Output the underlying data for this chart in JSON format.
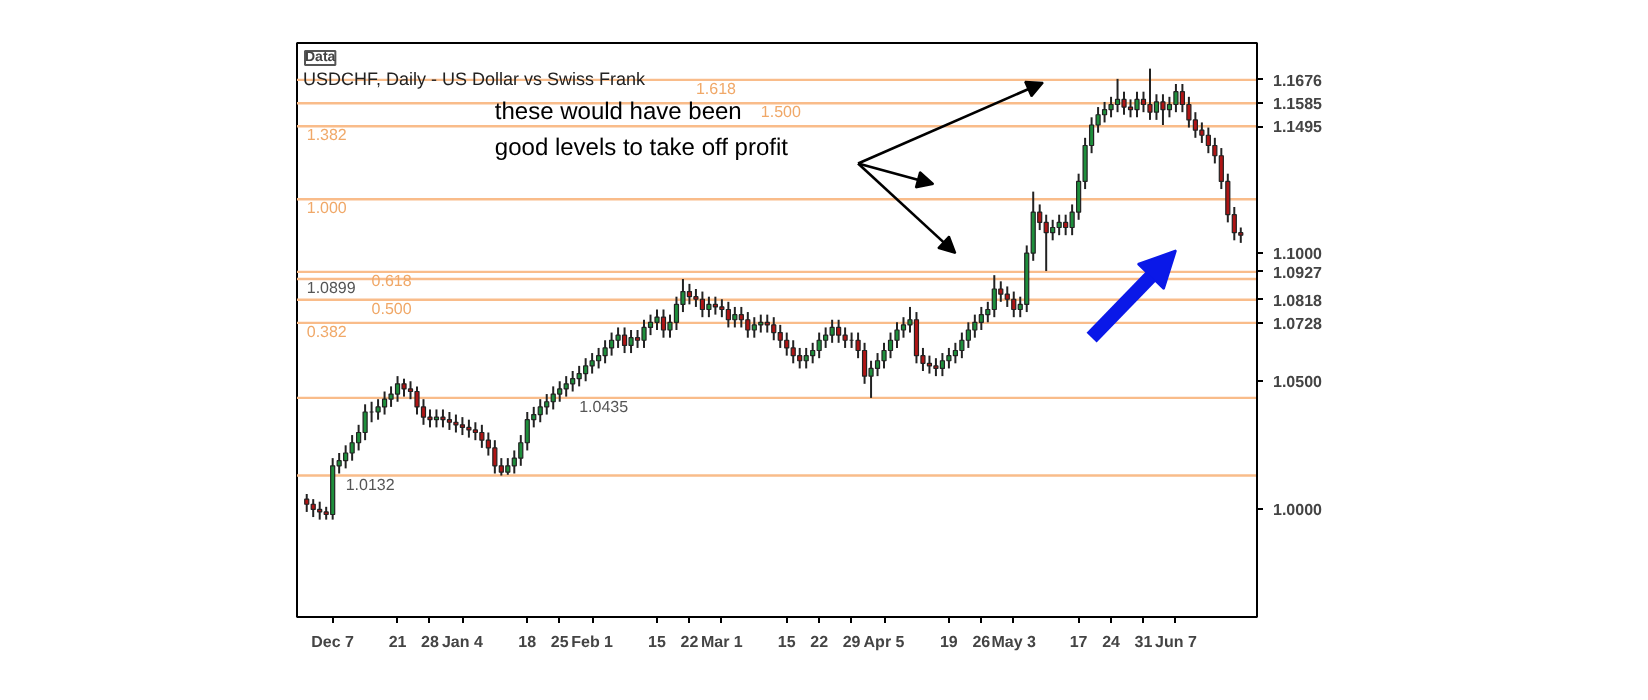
{
  "chart_data": {
    "type": "candlestick",
    "title": "USDCHF, Daily - US Dollar vs Swiss Frank",
    "annotations": [
      "Data",
      "these would have been\ngood levels to take off profit",
      {
        "text": "1.618",
        "y": 1.1676
      },
      {
        "text": "1.500",
        "y": 1.1585
      },
      {
        "text": "1.382",
        "y": 1.1495
      },
      {
        "text": "1.000",
        "y": 1.121
      },
      {
        "text": "0.618",
        "y": 1.0927
      },
      {
        "text": "0.500",
        "y": 1.0818
      },
      {
        "text": "0.382",
        "y": 1.0728
      }
    ],
    "categories": [
      null,
      null,
      null,
      null,
      "Dec 7",
      null,
      null,
      null,
      null,
      null,
      null,
      null,
      null,
      null,
      "21",
      null,
      null,
      null,
      null,
      "28",
      null,
      null,
      null,
      null,
      "Jan 4",
      null,
      null,
      null,
      null,
      null,
      null,
      null,
      null,
      null,
      "18",
      null,
      null,
      null,
      null,
      "25",
      null,
      null,
      null,
      null,
      "Feb 1",
      null,
      null,
      null,
      null,
      null,
      null,
      null,
      null,
      null,
      "15",
      null,
      null,
      null,
      null,
      "22",
      null,
      null,
      null,
      null,
      "Mar 1",
      null,
      null,
      null,
      null,
      null,
      null,
      null,
      null,
      null,
      "15",
      null,
      null,
      null,
      null,
      "22",
      null,
      null,
      null,
      null,
      "29",
      null,
      null,
      null,
      null,
      "Apr 5",
      null,
      null,
      null,
      null,
      null,
      null,
      null,
      null,
      null,
      "19",
      null,
      null,
      null,
      null,
      "26",
      null,
      null,
      null,
      null,
      "May 3",
      null,
      null,
      null,
      null,
      null,
      null,
      null,
      null,
      null,
      "17",
      null,
      null,
      null,
      null,
      "24",
      null,
      null,
      null,
      null,
      "31",
      null,
      null,
      null,
      null,
      "Jun 7",
      null,
      null,
      null,
      null,
      null,
      null,
      null,
      null,
      null,
      null
    ],
    "ohlc": [
      [
        1.004,
        1.006,
        0.999,
        1.002
      ],
      [
        1.002,
        1.004,
        0.997,
        1.0
      ],
      [
        1.0,
        1.003,
        0.996,
        0.999
      ],
      [
        0.999,
        1.001,
        0.996,
        0.998
      ],
      [
        0.998,
        1.02,
        0.996,
        1.017
      ],
      [
        1.017,
        1.022,
        1.014,
        1.019
      ],
      [
        1.019,
        1.025,
        1.016,
        1.022
      ],
      [
        1.022,
        1.029,
        1.019,
        1.026
      ],
      [
        1.026,
        1.033,
        1.023,
        1.03
      ],
      [
        1.03,
        1.041,
        1.027,
        1.038
      ],
      [
        1.038,
        1.042,
        1.034,
        1.038
      ],
      [
        1.038,
        1.043,
        1.035,
        1.04
      ],
      [
        1.04,
        1.046,
        1.037,
        1.043
      ],
      [
        1.043,
        1.048,
        1.04,
        1.045
      ],
      [
        1.045,
        1.052,
        1.042,
        1.049
      ],
      [
        1.049,
        1.051,
        1.044,
        1.047
      ],
      [
        1.047,
        1.05,
        1.043,
        1.046
      ],
      [
        1.046,
        1.048,
        1.037,
        1.04
      ],
      [
        1.04,
        1.043,
        1.033,
        1.036
      ],
      [
        1.036,
        1.039,
        1.032,
        1.035
      ],
      [
        1.035,
        1.039,
        1.032,
        1.036
      ],
      [
        1.036,
        1.039,
        1.032,
        1.035
      ],
      [
        1.035,
        1.038,
        1.031,
        1.034
      ],
      [
        1.034,
        1.037,
        1.03,
        1.033
      ],
      [
        1.033,
        1.036,
        1.029,
        1.032
      ],
      [
        1.032,
        1.035,
        1.028,
        1.031
      ],
      [
        1.031,
        1.034,
        1.027,
        1.03
      ],
      [
        1.03,
        1.033,
        1.024,
        1.027
      ],
      [
        1.027,
        1.03,
        1.021,
        1.024
      ],
      [
        1.024,
        1.027,
        1.014,
        1.017
      ],
      [
        1.017,
        1.02,
        1.0132,
        1.0145
      ],
      [
        1.0145,
        1.02,
        1.0135,
        1.017
      ],
      [
        1.017,
        1.023,
        1.014,
        1.02
      ],
      [
        1.02,
        1.029,
        1.017,
        1.026
      ],
      [
        1.026,
        1.038,
        1.023,
        1.035
      ],
      [
        1.035,
        1.04,
        1.032,
        1.037
      ],
      [
        1.037,
        1.043,
        1.034,
        1.04
      ],
      [
        1.04,
        1.045,
        1.037,
        1.042
      ],
      [
        1.042,
        1.048,
        1.039,
        1.045
      ],
      [
        1.045,
        1.05,
        1.042,
        1.047
      ],
      [
        1.047,
        1.052,
        1.044,
        1.049
      ],
      [
        1.049,
        1.054,
        1.046,
        1.051
      ],
      [
        1.051,
        1.056,
        1.048,
        1.053
      ],
      [
        1.053,
        1.059,
        1.05,
        1.056
      ],
      [
        1.056,
        1.061,
        1.053,
        1.058
      ],
      [
        1.058,
        1.063,
        1.055,
        1.06
      ],
      [
        1.06,
        1.066,
        1.057,
        1.063
      ],
      [
        1.063,
        1.069,
        1.06,
        1.066
      ],
      [
        1.066,
        1.071,
        1.063,
        1.068
      ],
      [
        1.068,
        1.071,
        1.061,
        1.064
      ],
      [
        1.064,
        1.07,
        1.061,
        1.067
      ],
      [
        1.067,
        1.07,
        1.063,
        1.066
      ],
      [
        1.066,
        1.074,
        1.063,
        1.071
      ],
      [
        1.071,
        1.076,
        1.068,
        1.073
      ],
      [
        1.073,
        1.078,
        1.07,
        1.075
      ],
      [
        1.075,
        1.078,
        1.067,
        1.07
      ],
      [
        1.07,
        1.076,
        1.067,
        1.073
      ],
      [
        1.073,
        1.083,
        1.07,
        1.08
      ],
      [
        1.08,
        1.0899,
        1.077,
        1.085
      ],
      [
        1.085,
        1.088,
        1.08,
        1.083
      ],
      [
        1.083,
        1.086,
        1.079,
        1.082
      ],
      [
        1.082,
        1.085,
        1.075,
        1.078
      ],
      [
        1.078,
        1.083,
        1.075,
        1.08
      ],
      [
        1.08,
        1.083,
        1.076,
        1.079
      ],
      [
        1.079,
        1.082,
        1.075,
        1.078
      ],
      [
        1.078,
        1.081,
        1.071,
        1.074
      ],
      [
        1.074,
        1.079,
        1.071,
        1.076
      ],
      [
        1.076,
        1.079,
        1.071,
        1.074
      ],
      [
        1.074,
        1.077,
        1.067,
        1.07
      ],
      [
        1.07,
        1.075,
        1.067,
        1.072
      ],
      [
        1.072,
        1.076,
        1.069,
        1.073
      ],
      [
        1.073,
        1.076,
        1.069,
        1.072
      ],
      [
        1.072,
        1.075,
        1.066,
        1.069
      ],
      [
        1.069,
        1.072,
        1.063,
        1.066
      ],
      [
        1.066,
        1.069,
        1.06,
        1.063
      ],
      [
        1.063,
        1.066,
        1.057,
        1.06
      ],
      [
        1.06,
        1.063,
        1.055,
        1.058
      ],
      [
        1.058,
        1.063,
        1.055,
        1.06
      ],
      [
        1.06,
        1.065,
        1.057,
        1.062
      ],
      [
        1.062,
        1.069,
        1.059,
        1.066
      ],
      [
        1.066,
        1.071,
        1.063,
        1.068
      ],
      [
        1.068,
        1.074,
        1.065,
        1.071
      ],
      [
        1.071,
        1.074,
        1.065,
        1.068
      ],
      [
        1.068,
        1.071,
        1.063,
        1.066
      ],
      [
        1.066,
        1.069,
        1.063,
        1.066
      ],
      [
        1.066,
        1.069,
        1.059,
        1.062
      ],
      [
        1.062,
        1.065,
        1.049,
        1.052
      ],
      [
        1.052,
        1.058,
        1.0435,
        1.055
      ],
      [
        1.055,
        1.061,
        1.052,
        1.058
      ],
      [
        1.058,
        1.065,
        1.055,
        1.062
      ],
      [
        1.062,
        1.069,
        1.059,
        1.066
      ],
      [
        1.066,
        1.073,
        1.063,
        1.07
      ],
      [
        1.07,
        1.075,
        1.067,
        1.072
      ],
      [
        1.072,
        1.079,
        1.069,
        1.074
      ],
      [
        1.074,
        1.077,
        1.057,
        1.06
      ],
      [
        1.06,
        1.063,
        1.054,
        1.057
      ],
      [
        1.057,
        1.06,
        1.053,
        1.056
      ],
      [
        1.056,
        1.059,
        1.052,
        1.055
      ],
      [
        1.055,
        1.061,
        1.052,
        1.058
      ],
      [
        1.058,
        1.063,
        1.055,
        1.06
      ],
      [
        1.06,
        1.065,
        1.057,
        1.062
      ],
      [
        1.062,
        1.069,
        1.059,
        1.066
      ],
      [
        1.066,
        1.073,
        1.063,
        1.07
      ],
      [
        1.07,
        1.076,
        1.067,
        1.073
      ],
      [
        1.073,
        1.079,
        1.07,
        1.076
      ],
      [
        1.076,
        1.081,
        1.073,
        1.078
      ],
      [
        1.078,
        1.0914,
        1.075,
        1.086
      ],
      [
        1.086,
        1.089,
        1.081,
        1.084
      ],
      [
        1.084,
        1.087,
        1.079,
        1.082
      ],
      [
        1.082,
        1.085,
        1.075,
        1.078
      ],
      [
        1.078,
        1.083,
        1.075,
        1.08
      ],
      [
        1.08,
        1.103,
        1.077,
        1.1
      ],
      [
        1.1,
        1.124,
        1.097,
        1.116
      ],
      [
        1.116,
        1.119,
        1.109,
        1.112
      ],
      [
        1.112,
        1.115,
        1.093,
        1.108
      ],
      [
        1.108,
        1.113,
        1.105,
        1.11
      ],
      [
        1.11,
        1.115,
        1.107,
        1.112
      ],
      [
        1.112,
        1.115,
        1.107,
        1.11
      ],
      [
        1.11,
        1.119,
        1.107,
        1.116
      ],
      [
        1.116,
        1.131,
        1.113,
        1.128
      ],
      [
        1.128,
        1.145,
        1.125,
        1.142
      ],
      [
        1.142,
        1.153,
        1.139,
        1.15
      ],
      [
        1.15,
        1.157,
        1.147,
        1.154
      ],
      [
        1.154,
        1.159,
        1.151,
        1.156
      ],
      [
        1.156,
        1.161,
        1.153,
        1.158
      ],
      [
        1.158,
        1.168,
        1.155,
        1.16
      ],
      [
        1.16,
        1.163,
        1.154,
        1.157
      ],
      [
        1.157,
        1.16,
        1.153,
        1.156
      ],
      [
        1.156,
        1.163,
        1.153,
        1.16
      ],
      [
        1.16,
        1.163,
        1.155,
        1.158
      ],
      [
        1.158,
        1.172,
        1.152,
        1.155
      ],
      [
        1.155,
        1.162,
        1.152,
        1.159
      ],
      [
        1.159,
        1.162,
        1.15,
        1.156
      ],
      [
        1.156,
        1.161,
        1.153,
        1.158
      ],
      [
        1.158,
        1.166,
        1.155,
        1.163
      ],
      [
        1.163,
        1.166,
        1.155,
        1.158
      ],
      [
        1.158,
        1.161,
        1.149,
        1.152
      ],
      [
        1.152,
        1.155,
        1.145,
        1.148
      ],
      [
        1.148,
        1.151,
        1.143,
        1.146
      ],
      [
        1.146,
        1.149,
        1.139,
        1.142
      ],
      [
        1.142,
        1.145,
        1.135,
        1.138
      ],
      [
        1.138,
        1.141,
        1.125,
        1.128
      ],
      [
        1.128,
        1.131,
        1.112,
        1.115
      ],
      [
        1.115,
        1.118,
        1.105,
        1.108
      ],
      [
        1.108,
        1.11,
        1.104,
        1.107
      ]
    ],
    "ylim": [
      0.958,
      1.182
    ],
    "yticks": [
      {
        "value": 1.0,
        "label": "1.0000"
      },
      {
        "value": 1.05,
        "label": "1.0500"
      },
      {
        "value": 1.1,
        "label": "1.1000"
      },
      1.1676,
      1.1585,
      1.1495,
      1.0927,
      1.0818,
      1.0728
    ],
    "ref_lines": [
      {
        "axis": "y",
        "value": 1.0132,
        "label": "1.0132",
        "color": "#f9bc8a"
      },
      {
        "axis": "y",
        "value": 1.0899,
        "label": "1.0899",
        "color": "#f9bc8a"
      },
      {
        "axis": "y",
        "value": 1.0435,
        "label": "1.0435",
        "color": "#f9bc8a"
      },
      {
        "axis": "y",
        "value": 1.1676,
        "color": "#f9bc8a"
      },
      {
        "axis": "y",
        "value": 1.1585,
        "color": "#f9bc8a"
      },
      {
        "axis": "y",
        "value": 1.1495,
        "color": "#f9bc8a"
      },
      {
        "axis": "y",
        "value": 1.121,
        "color": "#f9bc8a"
      },
      {
        "axis": "y",
        "value": 1.0927,
        "color": "#f9bc8a"
      },
      {
        "axis": "y",
        "value": 1.0818,
        "color": "#f9bc8a"
      },
      {
        "axis": "y",
        "value": 1.0728,
        "color": "#f9bc8a"
      }
    ],
    "grid": false
  }
}
